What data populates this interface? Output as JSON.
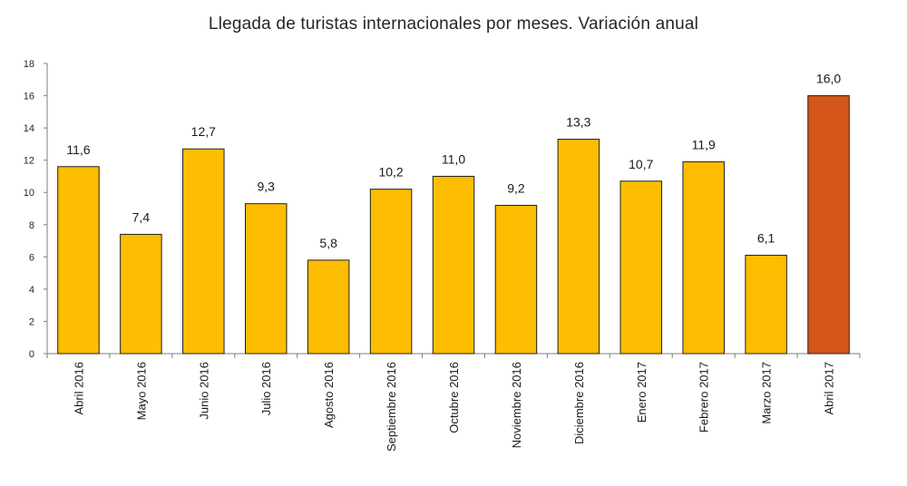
{
  "chart_data": {
    "type": "bar",
    "title": "Llegada de turistas internacionales por meses. Variación anual",
    "xlabel": "",
    "ylabel": "",
    "categories": [
      "Abril 2016",
      "Mayo 2016",
      "Junio 2016",
      "Julio 2016",
      "Agosto 2016",
      "Septiembre 2016",
      "Octubre 2016",
      "Noviembre 2016",
      "Diciembre 2016",
      "Enero 2017",
      "Febrero 2017",
      "Marzo 2017",
      "Abril 2017"
    ],
    "values": [
      11.6,
      7.4,
      12.7,
      9.3,
      5.8,
      10.2,
      11.0,
      9.2,
      13.3,
      10.7,
      11.9,
      6.1,
      16.0
    ],
    "data_labels": [
      "11,6",
      "7,4",
      "12,7",
      "9,3",
      "5,8",
      "10,2",
      "11,0",
      "9,2",
      "13,3",
      "10,7",
      "11,9",
      "6,1",
      "16,0"
    ],
    "ylim": [
      0,
      18
    ],
    "yticks": [
      0,
      2,
      4,
      6,
      8,
      10,
      12,
      14,
      16,
      18
    ],
    "grid": false,
    "legend": "none",
    "colors": {
      "bar": "#FDBD00",
      "highlight_bar": "#D5561A",
      "highlight_index": 12,
      "bar_edge": "#1f1f1f",
      "axis": "#7f7f7f"
    }
  }
}
